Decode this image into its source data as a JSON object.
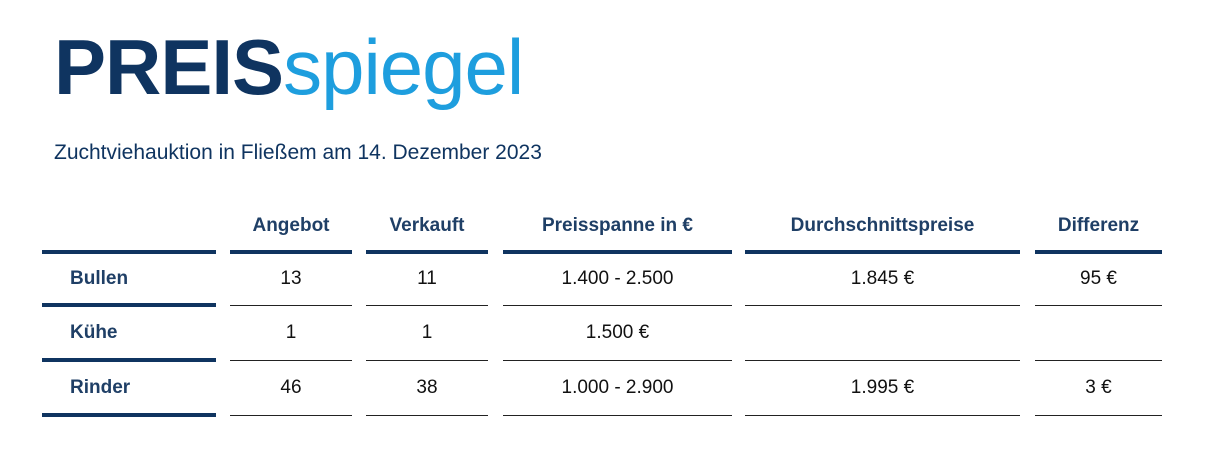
{
  "logo": {
    "bold": "PREIS",
    "light": "spiegel"
  },
  "subtitle": "Zuchtviehauktion in Fließem am 14. Dezember 2023",
  "table": {
    "headers": [
      "Angebot",
      "Verkauft",
      "Preisspanne in €",
      "Durchschnittspreise",
      "Differenz"
    ],
    "rows": [
      {
        "label": "Bullen",
        "angebot": "13",
        "verkauft": "11",
        "preisspanne": "1.400 - 2.500",
        "durchschnitt": "1.845 €",
        "differenz": "95 €"
      },
      {
        "label": "Kühe",
        "angebot": "1",
        "verkauft": "1",
        "preisspanne": "1.500 €",
        "durchschnitt": "",
        "differenz": ""
      },
      {
        "label": "Rinder",
        "angebot": "46",
        "verkauft": "38",
        "preisspanne": "1.000 - 2.900",
        "durchschnitt": "1.995 €",
        "differenz": "3 €"
      }
    ]
  }
}
